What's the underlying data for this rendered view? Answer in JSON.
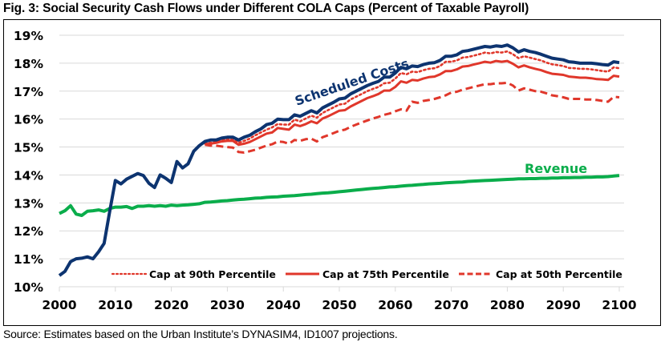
{
  "page": {
    "title": "Fig. 3: Social Security Cash Flows under Different COLA Caps (Percent of Taxable Payroll)",
    "source": "Source: Estimates based on the Urban Institute’s DYNASIM4, ID1007 projections."
  },
  "colors": {
    "scheduled_costs": "#0d3470",
    "revenue": "#0aad4b",
    "caps": "#e0372b",
    "grid": "#d9d9d9"
  },
  "chart_data": {
    "type": "line",
    "title": "Fig. 3: Social Security Cash Flows under Different COLA Caps (Percent of Taxable Payroll)",
    "xlabel": "",
    "ylabel": "",
    "xlim": [
      2000,
      2100
    ],
    "ylim": [
      10,
      19
    ],
    "grid": true,
    "x_ticks": [
      "2000",
      "2010",
      "2020",
      "2030",
      "2040",
      "2050",
      "2060",
      "2070",
      "2080",
      "2090",
      "2100"
    ],
    "y_ticks": [
      "10%",
      "11%",
      "12%",
      "13%",
      "14%",
      "15%",
      "16%",
      "17%",
      "18%",
      "19%"
    ],
    "legend_position": "bottom-right inside plot",
    "annotations": [
      {
        "text": "Scheduled Costs",
        "series": "Scheduled Costs"
      },
      {
        "text": "Revenue",
        "series": "Revenue"
      }
    ],
    "series": [
      {
        "name": "Scheduled Costs",
        "style": "solid",
        "start_year": 2000,
        "values": [
          10.4,
          10.55,
          10.9,
          11.0,
          11.02,
          11.07,
          11.0,
          11.25,
          11.55,
          12.7,
          13.8,
          13.68,
          13.85,
          13.95,
          14.05,
          13.98,
          13.7,
          13.55,
          14.0,
          13.88,
          13.73,
          14.48,
          14.25,
          14.4,
          14.85,
          15.05,
          15.2,
          15.25,
          15.25,
          15.32,
          15.35,
          15.35,
          15.25,
          15.35,
          15.42,
          15.55,
          15.65,
          15.8,
          15.85,
          16.0,
          15.98,
          15.98,
          16.15,
          16.1,
          16.2,
          16.3,
          16.22,
          16.4,
          16.5,
          16.6,
          16.72,
          16.75,
          16.9,
          17.0,
          17.1,
          17.2,
          17.28,
          17.35,
          17.5,
          17.5,
          17.65,
          17.85,
          17.8,
          17.9,
          17.88,
          17.95,
          18.0,
          18.02,
          18.1,
          18.25,
          18.25,
          18.3,
          18.42,
          18.45,
          18.5,
          18.55,
          18.6,
          18.58,
          18.62,
          18.6,
          18.65,
          18.55,
          18.4,
          18.48,
          18.42,
          18.38,
          18.32,
          18.25,
          18.18,
          18.15,
          18.12,
          18.05,
          18.03,
          18.0,
          18.0,
          18.0,
          17.98,
          17.95,
          17.93,
          18.05,
          18.02
        ]
      },
      {
        "name": "Revenue",
        "style": "solid",
        "start_year": 2000,
        "values": [
          12.62,
          12.72,
          12.9,
          12.6,
          12.55,
          12.7,
          12.72,
          12.75,
          12.7,
          12.8,
          12.85,
          12.85,
          12.87,
          12.8,
          12.88,
          12.88,
          12.9,
          12.88,
          12.9,
          12.88,
          12.92,
          12.9,
          12.92,
          12.93,
          12.95,
          12.97,
          13.02,
          13.03,
          13.05,
          13.07,
          13.08,
          13.1,
          13.12,
          13.13,
          13.15,
          13.17,
          13.18,
          13.2,
          13.21,
          13.22,
          13.24,
          13.25,
          13.26,
          13.28,
          13.3,
          13.31,
          13.33,
          13.35,
          13.36,
          13.38,
          13.4,
          13.42,
          13.44,
          13.46,
          13.48,
          13.5,
          13.52,
          13.53,
          13.55,
          13.57,
          13.58,
          13.6,
          13.62,
          13.63,
          13.65,
          13.66,
          13.68,
          13.69,
          13.7,
          13.72,
          13.73,
          13.74,
          13.75,
          13.77,
          13.78,
          13.79,
          13.8,
          13.81,
          13.82,
          13.83,
          13.84,
          13.85,
          13.86,
          13.86,
          13.87,
          13.87,
          13.88,
          13.88,
          13.89,
          13.89,
          13.9,
          13.9,
          13.91,
          13.91,
          13.92,
          13.92,
          13.93,
          13.93,
          13.94,
          13.96,
          13.98
        ]
      },
      {
        "name": "Cap at 90th Percentile",
        "style": "dotted",
        "start_year": 2026,
        "values": [
          15.12,
          15.15,
          15.18,
          15.25,
          15.28,
          15.28,
          15.15,
          15.22,
          15.3,
          15.42,
          15.52,
          15.62,
          15.7,
          15.82,
          15.8,
          15.8,
          15.98,
          15.92,
          16.02,
          16.12,
          16.05,
          16.22,
          16.32,
          16.42,
          16.52,
          16.55,
          16.7,
          16.8,
          16.9,
          17.0,
          17.08,
          17.15,
          17.28,
          17.3,
          17.45,
          17.65,
          17.6,
          17.7,
          17.68,
          17.75,
          17.8,
          17.82,
          17.9,
          18.05,
          18.05,
          18.1,
          18.2,
          18.22,
          18.27,
          18.32,
          18.38,
          18.35,
          18.4,
          18.38,
          18.42,
          18.32,
          18.18,
          18.25,
          18.2,
          18.15,
          18.1,
          18.02,
          17.96,
          17.93,
          17.9,
          17.83,
          17.82,
          17.8,
          17.8,
          17.78,
          17.75,
          17.72,
          17.7,
          17.85,
          17.82
        ]
      },
      {
        "name": "Cap at 75th Percentile",
        "style": "solid",
        "start_year": 2026,
        "values": [
          15.1,
          15.12,
          15.15,
          15.2,
          15.22,
          15.22,
          15.08,
          15.12,
          15.18,
          15.28,
          15.38,
          15.48,
          15.52,
          15.68,
          15.65,
          15.62,
          15.8,
          15.75,
          15.82,
          15.92,
          15.85,
          16.02,
          16.1,
          16.2,
          16.3,
          16.32,
          16.45,
          16.55,
          16.65,
          16.75,
          16.82,
          16.9,
          17.02,
          17.02,
          17.15,
          17.35,
          17.3,
          17.4,
          17.38,
          17.45,
          17.5,
          17.52,
          17.6,
          17.72,
          17.72,
          17.78,
          17.88,
          17.9,
          17.95,
          18.0,
          18.05,
          18.02,
          18.08,
          18.05,
          18.08,
          17.98,
          17.85,
          17.92,
          17.85,
          17.8,
          17.75,
          17.68,
          17.62,
          17.6,
          17.58,
          17.52,
          17.5,
          17.48,
          17.48,
          17.46,
          17.43,
          17.42,
          17.4,
          17.55,
          17.52
        ]
      },
      {
        "name": "Cap at 50th Percentile",
        "style": "dashed",
        "start_year": 2026,
        "values": [
          15.08,
          15.05,
          15.05,
          15.02,
          15.0,
          14.98,
          14.82,
          14.8,
          14.85,
          14.9,
          14.98,
          15.05,
          15.1,
          15.2,
          15.18,
          15.12,
          15.25,
          15.22,
          15.28,
          15.3,
          15.2,
          15.35,
          15.42,
          15.5,
          15.58,
          15.62,
          15.72,
          15.8,
          15.88,
          15.95,
          16.02,
          16.08,
          16.15,
          16.2,
          16.28,
          16.35,
          16.3,
          16.62,
          16.58,
          16.65,
          16.68,
          16.72,
          16.78,
          16.85,
          16.95,
          16.98,
          17.05,
          17.1,
          17.15,
          17.2,
          17.25,
          17.25,
          17.28,
          17.28,
          17.3,
          17.2,
          17.02,
          17.1,
          17.05,
          17.0,
          16.98,
          16.92,
          16.85,
          16.82,
          16.78,
          16.72,
          16.72,
          16.72,
          16.7,
          16.7,
          16.68,
          16.65,
          16.62,
          16.8,
          16.78
        ]
      }
    ],
    "legend": [
      {
        "label": "Cap at 90th Percentile",
        "style": "dotted"
      },
      {
        "label": "Cap at 75th Percentile",
        "style": "solid"
      },
      {
        "label": "Cap at 50th Percentile",
        "style": "dashed"
      }
    ]
  }
}
